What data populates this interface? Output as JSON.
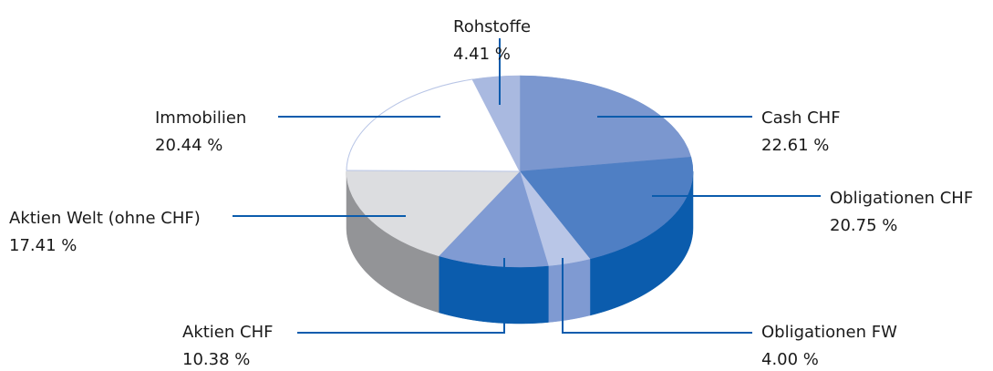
{
  "chart_data": {
    "type": "pie3d",
    "categories": [
      "Cash CHF",
      "Obligationen CHF",
      "Obligationen FW",
      "Aktien CHF",
      "Aktien Welt (ohne CHF)",
      "Immobilien",
      "Rohstoffe"
    ],
    "values": [
      22.61,
      20.75,
      4.0,
      10.38,
      17.41,
      20.44,
      4.41
    ],
    "value_labels": [
      "22.61 %",
      "20.75 %",
      "4.00 %",
      "10.38 %",
      "17.41 %",
      "20.44 %",
      "4.41 %"
    ],
    "colors": [
      "#7b97cf",
      "#4f7fc4",
      "#b9c6e7",
      "#809bd3",
      "#dcdde0",
      "#ffffff",
      "#a9b9e0"
    ],
    "side_colors": [
      "#3f6fb8",
      "#0b5cad",
      "#7f9ad2",
      "#0b5cad",
      "#939497",
      "#f4f4f6",
      "#8ea3d6"
    ]
  }
}
